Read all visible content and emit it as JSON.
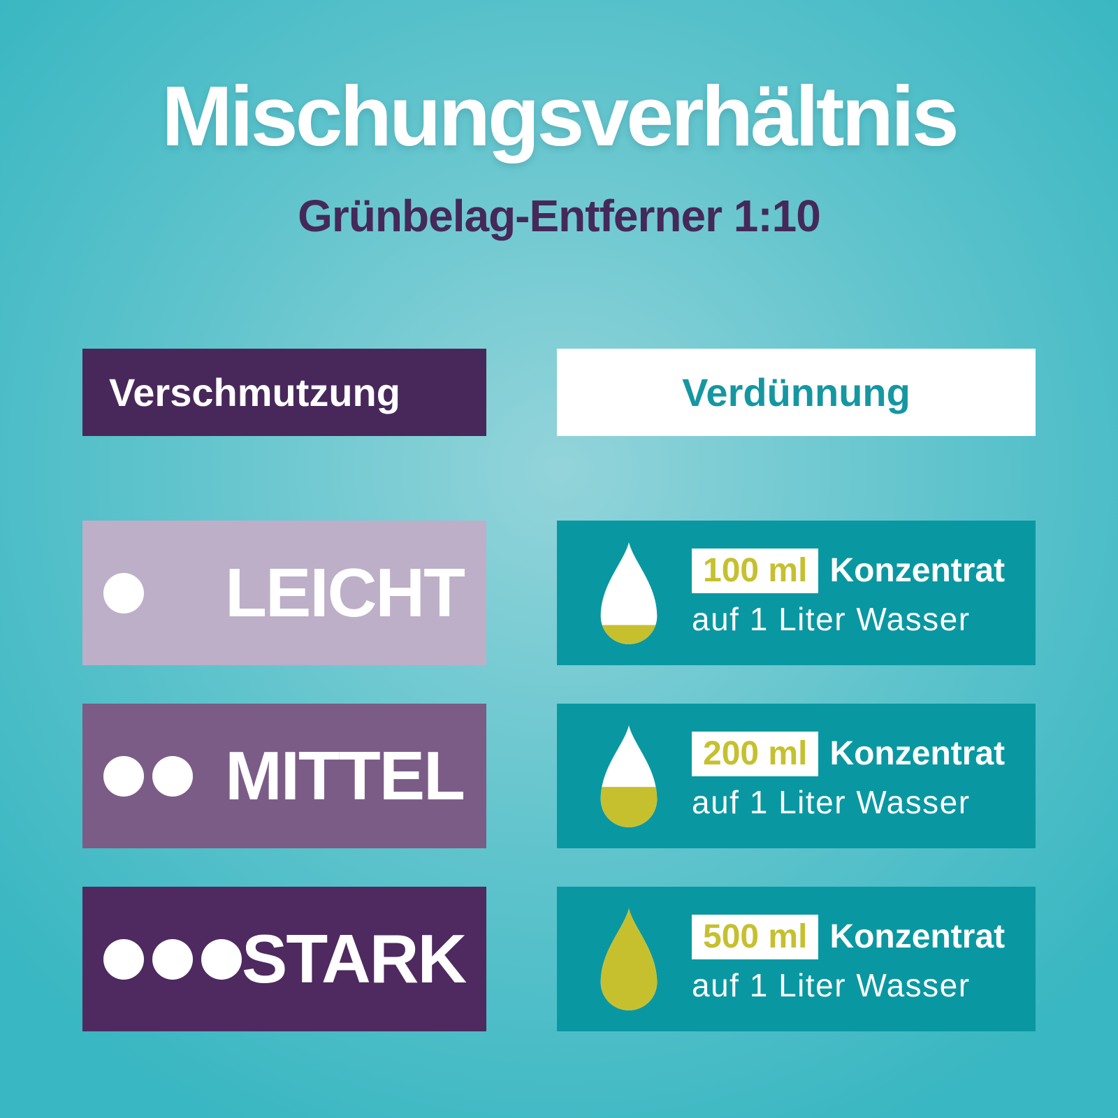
{
  "title": "Mischungsverhältnis",
  "subtitle": "Grünbelag-Entferner 1:10",
  "ratio": "1:10",
  "headers": {
    "left": "Verschmutzung",
    "right": "Verdünnung"
  },
  "rows": [
    {
      "level": "LEICHT",
      "dots": 1,
      "row_color": "#bdafc8",
      "amount": "100 ml",
      "substance": "Konzentrat",
      "per": "auf 1 Liter Wasser",
      "fill_percent": 20
    },
    {
      "level": "MITTEL",
      "dots": 2,
      "row_color": "#7b5c87",
      "amount": "200 ml",
      "substance": "Konzentrat",
      "per": "auf 1 Liter Wasser",
      "fill_percent": 40
    },
    {
      "level": "STARK",
      "dots": 3,
      "row_color": "#4e2a60",
      "amount": "500 ml",
      "substance": "Konzentrat",
      "per": "auf 1 Liter Wasser",
      "fill_percent": 100
    }
  ],
  "colors": {
    "background_edge": "#39b7c2",
    "background_center": "#93d4da",
    "dilution_box": "#0998a2",
    "header_purple": "#48285a",
    "subtitle_purple": "#44295a",
    "teal_text": "#1597a2",
    "accent_yellow": "#c6c02f",
    "text_white": "#ffffff"
  }
}
